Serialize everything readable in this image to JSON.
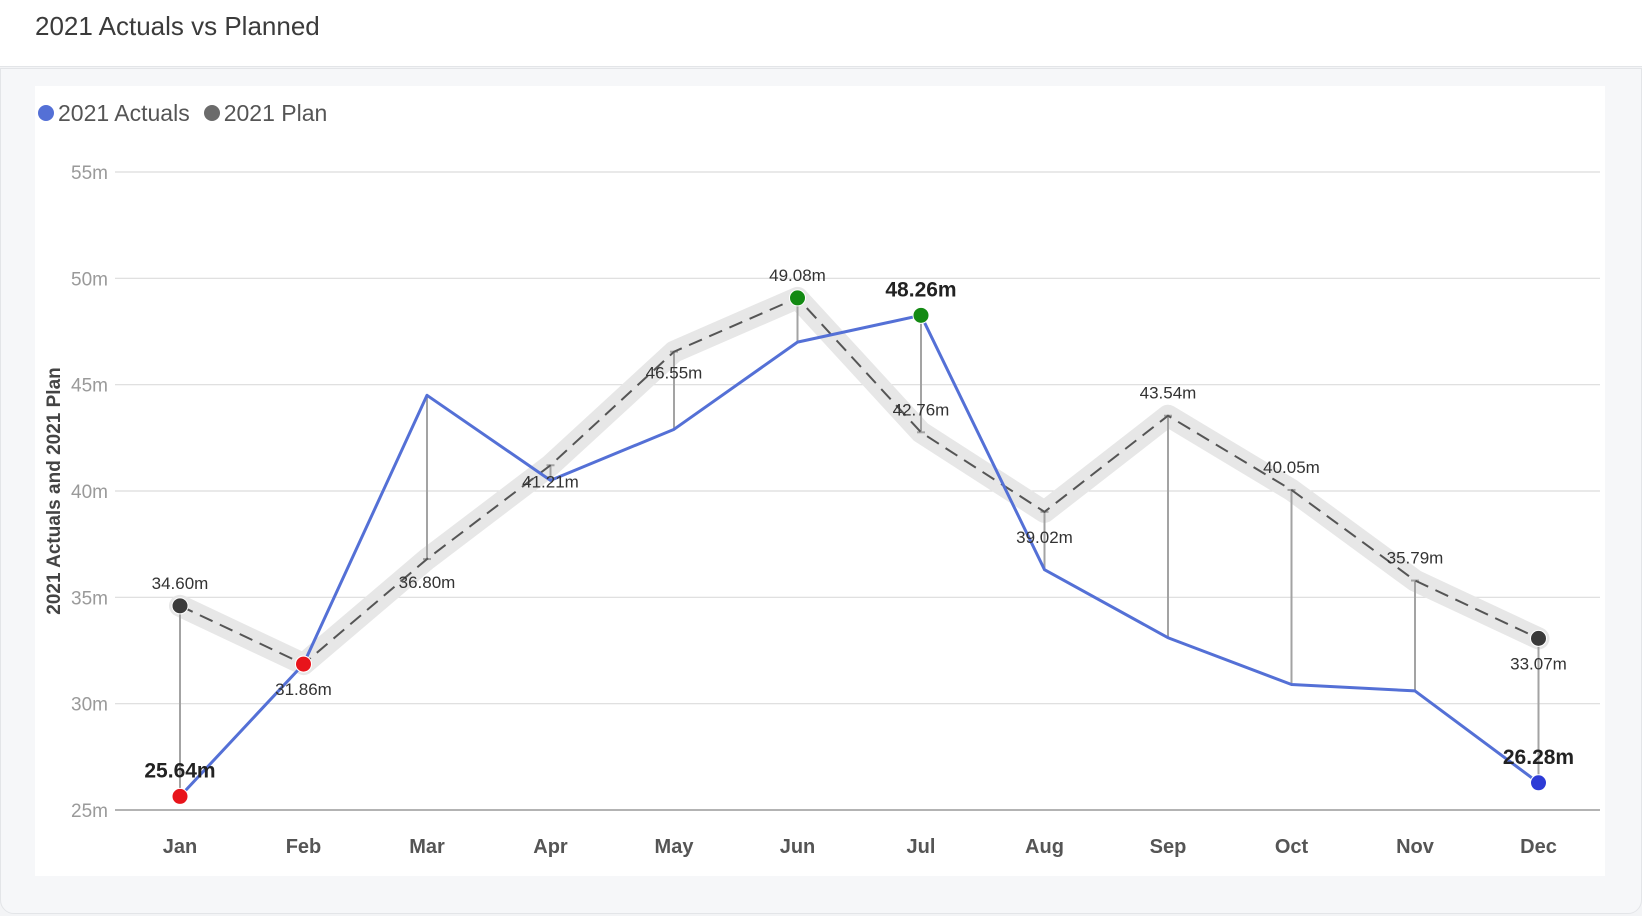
{
  "header": {
    "title": "2021 Actuals vs Planned"
  },
  "legend": [
    {
      "label": "2021 Actuals",
      "color": "#5470d6"
    },
    {
      "label": "2021 Plan",
      "color": "#6b6b6b"
    }
  ],
  "chart_data": {
    "type": "line",
    "ylabel": "2021 Actuals and 2021 Plan",
    "ylim": [
      25,
      55
    ],
    "yticks": [
      25,
      30,
      35,
      40,
      45,
      50,
      55
    ],
    "ytick_labels": [
      "25m",
      "30m",
      "35m",
      "40m",
      "45m",
      "50m",
      "55m"
    ],
    "categories": [
      "Jan",
      "Feb",
      "Mar",
      "Apr",
      "May",
      "Jun",
      "Jul",
      "Aug",
      "Sep",
      "Oct",
      "Nov",
      "Dec"
    ],
    "grid": true,
    "legend_position": "top-left",
    "series": [
      {
        "name": "2021 Actuals",
        "color": "#5470d6",
        "values": [
          25.64,
          31.86,
          44.5,
          40.5,
          42.9,
          47.0,
          48.26,
          36.3,
          33.1,
          30.9,
          30.6,
          26.28
        ]
      },
      {
        "name": "2021 Plan",
        "color": "#555555",
        "style": "dashed",
        "values": [
          34.6,
          31.86,
          36.8,
          41.21,
          46.55,
          49.08,
          42.76,
          39.02,
          43.54,
          40.05,
          35.79,
          33.07
        ]
      }
    ],
    "plan_labels": [
      "34.60m",
      "31.86m",
      "36.80m",
      "41.21m",
      "46.55m",
      "49.08m",
      "42.76m",
      "39.02m",
      "43.54m",
      "40.05m",
      "35.79m",
      "33.07m"
    ],
    "highlights": [
      {
        "index": 0,
        "label": "25.64m",
        "color": "#e8141b"
      },
      {
        "index": 6,
        "label": "48.26m",
        "color": "#138a13"
      },
      {
        "index": 11,
        "label": "26.28m",
        "color": "#2d3bd6"
      }
    ],
    "marker_colors": {
      "plan": {
        "0": "#3a3a3a",
        "1": "#e8141b",
        "5": "#138a13",
        "11": "#3a3a3a"
      },
      "actual": {
        "0": "#e8141b",
        "1": "#e8141b",
        "6": "#138a13",
        "11": "#2d3bd6"
      }
    }
  }
}
